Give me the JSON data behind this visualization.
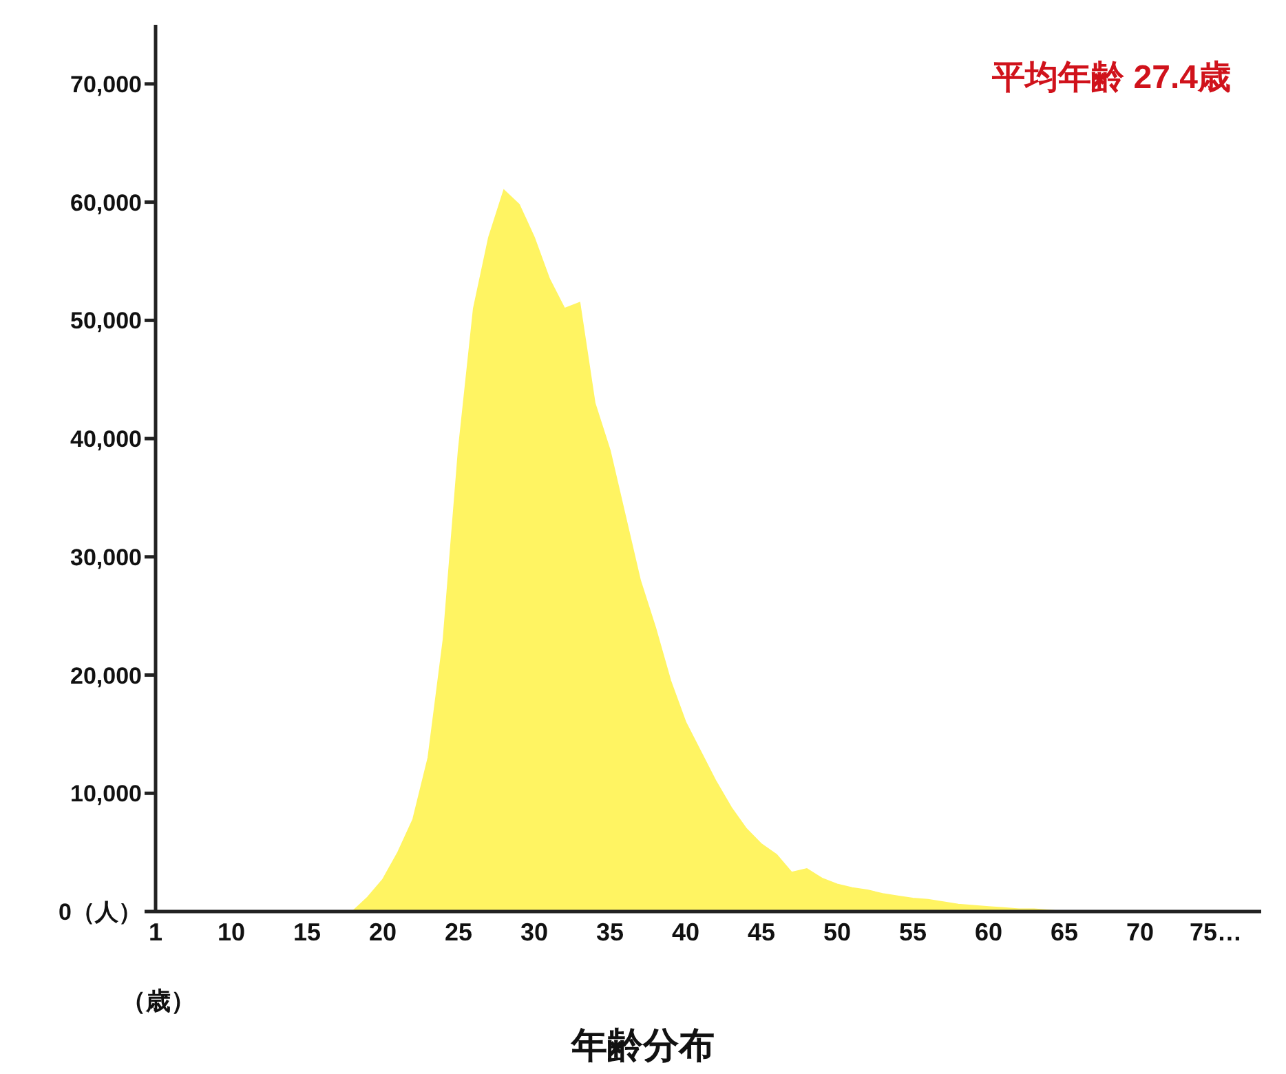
{
  "chart_data": {
    "type": "area",
    "title": "年齢分布",
    "xlabel": "（歳）",
    "annotations": [
      "平均年齢 27.4歳"
    ],
    "categories": [
      "1",
      null,
      null,
      null,
      null,
      "10",
      null,
      null,
      null,
      null,
      "15",
      null,
      null,
      null,
      null,
      "20",
      null,
      null,
      null,
      null,
      "25",
      null,
      null,
      null,
      null,
      "30",
      null,
      null,
      null,
      null,
      "35",
      null,
      null,
      null,
      null,
      "40",
      null,
      null,
      null,
      null,
      "45",
      null,
      null,
      null,
      null,
      "50",
      null,
      null,
      null,
      null,
      "55",
      null,
      null,
      null,
      null,
      "60",
      null,
      null,
      null,
      null,
      "65",
      null,
      null,
      null,
      null,
      "70",
      null,
      null,
      null,
      null,
      "75…",
      null,
      null,
      null
    ],
    "values": [
      0,
      0,
      0,
      0,
      0,
      0,
      0,
      0,
      0,
      0,
      0,
      0,
      0,
      0,
      1200,
      2700,
      5000,
      7800,
      13000,
      23000,
      39000,
      51000,
      57000,
      61000,
      59800,
      57000,
      53500,
      51000,
      51500,
      43000,
      39000,
      33500,
      28000,
      24000,
      19500,
      16000,
      13500,
      11000,
      8800,
      7000,
      5700,
      4800,
      3300,
      3600,
      2800,
      2300,
      2000,
      1800,
      1500,
      1300,
      1100,
      1000,
      800,
      600,
      500,
      400,
      300,
      200,
      200,
      100,
      0,
      0,
      0,
      0,
      0,
      0,
      0,
      0,
      0,
      0,
      0,
      0,
      0,
      0
    ],
    "color": "#fff462",
    "ylim": [
      0,
      75000
    ],
    "yticks": [
      {
        "value": 0,
        "label": "0（人）"
      },
      {
        "value": 10000,
        "label": "10,000"
      },
      {
        "value": 20000,
        "label": "20,000"
      },
      {
        "value": 30000,
        "label": "30,000"
      },
      {
        "value": 40000,
        "label": "40,000"
      },
      {
        "value": 50000,
        "label": "50,000"
      },
      {
        "value": 60000,
        "label": "60,000"
      },
      {
        "value": 70000,
        "label": "70,000"
      }
    ]
  }
}
